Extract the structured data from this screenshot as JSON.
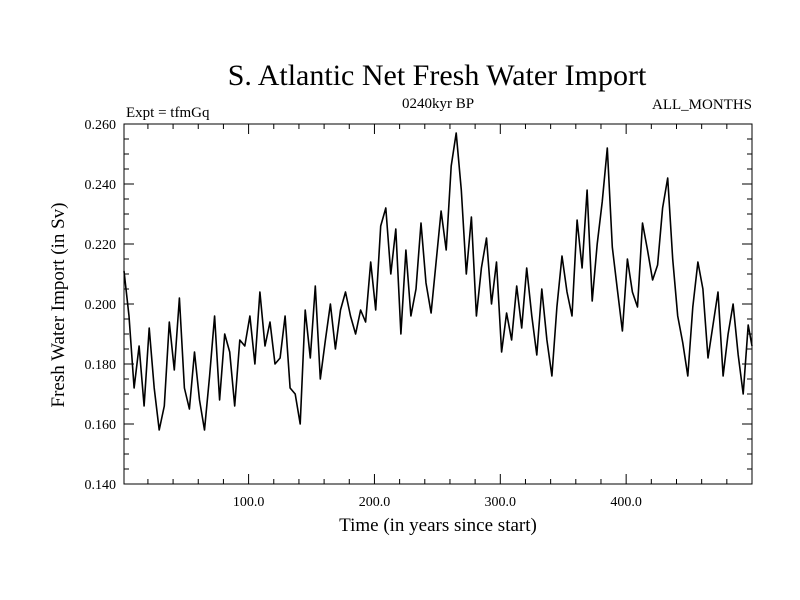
{
  "chart_data": {
    "type": "line",
    "title": "S. Atlantic Net Fresh Water Import",
    "subtitle_left": "Expt = tfmGq",
    "subtitle_center": "0240kyr BP",
    "subtitle_right": "ALL_MONTHS",
    "xlabel": "Time (in years since start)",
    "ylabel": "Fresh Water Import (in Sv)",
    "xlim": [
      1,
      500
    ],
    "ylim": [
      0.14,
      0.26
    ],
    "xticks": [
      100,
      200,
      300,
      400
    ],
    "xtick_labels": [
      "100.0",
      "200.0",
      "300.0",
      "400.0"
    ],
    "yticks": [
      0.14,
      0.16,
      0.18,
      0.2,
      0.22,
      0.24,
      0.26
    ],
    "ytick_labels": [
      "0.140",
      "0.160",
      "0.180",
      "0.200",
      "0.220",
      "0.240",
      "0.260"
    ],
    "grid": false,
    "series": [
      {
        "color": "#000000",
        "x": [
          1,
          5,
          9,
          13,
          17,
          21,
          25,
          29,
          33,
          37,
          41,
          45,
          49,
          53,
          57,
          61,
          65,
          69,
          73,
          77,
          81,
          85,
          89,
          93,
          97,
          101,
          105,
          109,
          113,
          117,
          121,
          125,
          129,
          133,
          137,
          141,
          145,
          149,
          153,
          157,
          161,
          165,
          169,
          173,
          177,
          181,
          185,
          189,
          193,
          197,
          201,
          205,
          209,
          213,
          217,
          221,
          225,
          229,
          233,
          237,
          241,
          245,
          249,
          253,
          257,
          261,
          265,
          269,
          273,
          277,
          281,
          285,
          289,
          293,
          297,
          301,
          305,
          309,
          313,
          317,
          321,
          325,
          329,
          333,
          337,
          341,
          345,
          349,
          353,
          357,
          361,
          365,
          369,
          373,
          377,
          381,
          385,
          389,
          393,
          397,
          401,
          405,
          409,
          413,
          417,
          421,
          425,
          429,
          433,
          437,
          441,
          445,
          449,
          453,
          457,
          461,
          465,
          469,
          473,
          477,
          481,
          485,
          489,
          493,
          497,
          500
        ],
        "y": [
          0.211,
          0.196,
          0.172,
          0.186,
          0.166,
          0.192,
          0.172,
          0.158,
          0.166,
          0.194,
          0.178,
          0.202,
          0.172,
          0.165,
          0.184,
          0.168,
          0.158,
          0.176,
          0.196,
          0.168,
          0.19,
          0.184,
          0.166,
          0.188,
          0.186,
          0.196,
          0.18,
          0.204,
          0.186,
          0.194,
          0.18,
          0.182,
          0.196,
          0.172,
          0.17,
          0.16,
          0.198,
          0.182,
          0.206,
          0.175,
          0.188,
          0.2,
          0.185,
          0.198,
          0.204,
          0.196,
          0.19,
          0.198,
          0.194,
          0.214,
          0.198,
          0.226,
          0.232,
          0.21,
          0.225,
          0.19,
          0.218,
          0.196,
          0.205,
          0.227,
          0.207,
          0.197,
          0.214,
          0.231,
          0.218,
          0.246,
          0.257,
          0.238,
          0.21,
          0.229,
          0.196,
          0.212,
          0.222,
          0.2,
          0.214,
          0.184,
          0.197,
          0.188,
          0.206,
          0.192,
          0.212,
          0.196,
          0.183,
          0.205,
          0.188,
          0.176,
          0.199,
          0.216,
          0.204,
          0.196,
          0.228,
          0.212,
          0.238,
          0.201,
          0.22,
          0.234,
          0.252,
          0.219,
          0.205,
          0.191,
          0.215,
          0.204,
          0.199,
          0.227,
          0.218,
          0.208,
          0.213,
          0.232,
          0.242,
          0.215,
          0.196,
          0.187,
          0.176,
          0.199,
          0.214,
          0.205,
          0.182,
          0.193,
          0.204,
          0.176,
          0.19,
          0.2,
          0.183,
          0.17,
          0.193,
          0.186
        ]
      }
    ]
  }
}
